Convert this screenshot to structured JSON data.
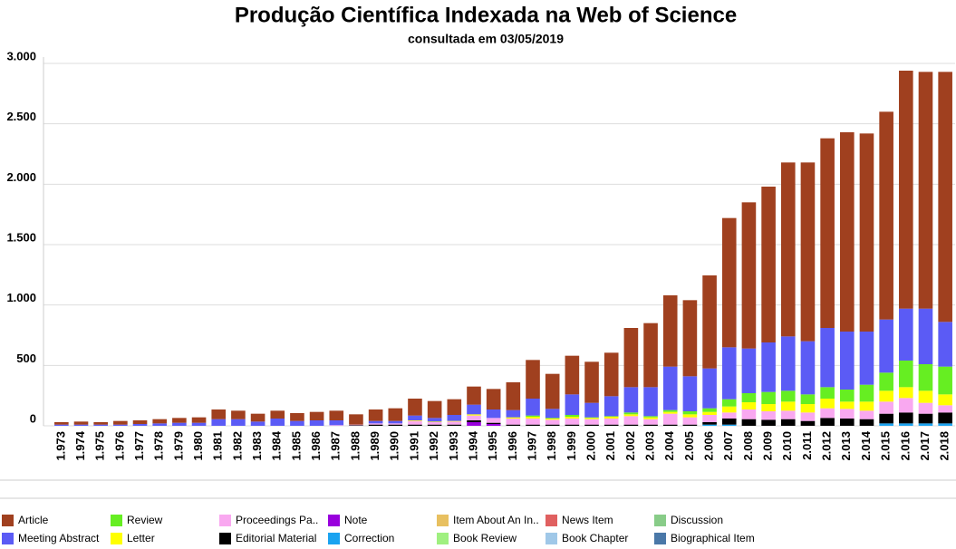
{
  "chart_data": {
    "type": "stacked_bar",
    "title": "Produção Científica Indexada na Web of Science",
    "subtitle": "consultada em 03/05/2019",
    "categories": [
      "1.973",
      "1.974",
      "1.975",
      "1.976",
      "1.977",
      "1.978",
      "1.979",
      "1.980",
      "1.981",
      "1.982",
      "1.983",
      "1.984",
      "1.985",
      "1.986",
      "1.987",
      "1.988",
      "1.989",
      "1.990",
      "1.991",
      "1.992",
      "1.993",
      "1.994",
      "1.995",
      "1.996",
      "1.997",
      "1.998",
      "1.999",
      "2.000",
      "2.001",
      "2.002",
      "2.003",
      "2.004",
      "2.005",
      "2.006",
      "2.007",
      "2.008",
      "2.009",
      "2.010",
      "2.011",
      "2.012",
      "2.013",
      "2.014",
      "2.015",
      "2.016",
      "2.017",
      "2.018"
    ],
    "ylim": [
      0,
      3000
    ],
    "yticks": [
      0,
      500,
      {
        "value": 1000,
        "label": "1.000"
      },
      {
        "value": 1500,
        "label": "1.500"
      },
      {
        "value": 2000,
        "label": "2.000"
      },
      {
        "value": 2500,
        "label": "2.500"
      },
      {
        "value": 3000,
        "label": "3.000"
      }
    ],
    "grid": true,
    "series": [
      {
        "name": "Article",
        "color": "#a0401f",
        "values": [
          20,
          25,
          20,
          30,
          30,
          35,
          40,
          45,
          80,
          70,
          65,
          65,
          65,
          70,
          80,
          85,
          95,
          105,
          140,
          140,
          130,
          150,
          170,
          230,
          320,
          290,
          320,
          340,
          360,
          490,
          530,
          590,
          630,
          770,
          1070,
          1210,
          1290,
          1440,
          1480,
          1570,
          1650,
          1640,
          1720,
          1970,
          1960,
          2070
        ]
      },
      {
        "name": "Meeting Abstract",
        "color": "#5b5bf5",
        "values": [
          10,
          10,
          10,
          10,
          15,
          20,
          25,
          25,
          55,
          55,
          35,
          60,
          40,
          45,
          40,
          0,
          20,
          20,
          40,
          30,
          50,
          80,
          70,
          60,
          140,
          75,
          170,
          120,
          165,
          210,
          240,
          360,
          290,
          330,
          430,
          370,
          410,
          450,
          440,
          490,
          480,
          440,
          440,
          430,
          460,
          370
        ]
      },
      {
        "name": "Review",
        "color": "#66ee22",
        "values": [
          0,
          0,
          0,
          0,
          0,
          0,
          0,
          0,
          0,
          0,
          0,
          0,
          0,
          0,
          0,
          0,
          0,
          0,
          0,
          0,
          0,
          0,
          0,
          0,
          10,
          5,
          15,
          5,
          5,
          15,
          10,
          15,
          25,
          30,
          60,
          75,
          100,
          90,
          80,
          95,
          100,
          140,
          150,
          220,
          220,
          230
        ]
      },
      {
        "name": "Letter",
        "color": "#ffff00",
        "values": [
          0,
          0,
          0,
          0,
          0,
          0,
          0,
          0,
          0,
          0,
          0,
          0,
          0,
          0,
          0,
          0,
          0,
          0,
          5,
          5,
          5,
          10,
          0,
          10,
          15,
          10,
          15,
          10,
          15,
          15,
          15,
          15,
          25,
          25,
          50,
          60,
          60,
          75,
          70,
          80,
          60,
          75,
          90,
          90,
          100,
          90
        ]
      },
      {
        "name": "Proceedings Pa..",
        "color": "#f9a8f0",
        "values": [
          0,
          0,
          0,
          0,
          0,
          0,
          0,
          0,
          0,
          0,
          0,
          0,
          0,
          0,
          5,
          5,
          10,
          10,
          30,
          20,
          25,
          40,
          40,
          50,
          50,
          40,
          50,
          45,
          50,
          70,
          45,
          90,
          60,
          60,
          50,
          80,
          70,
          70,
          70,
          80,
          80,
          70,
          100,
          120,
          90,
          60
        ]
      },
      {
        "name": "Editorial Material",
        "color": "#000000",
        "values": [
          0,
          0,
          0,
          0,
          0,
          0,
          0,
          0,
          0,
          0,
          0,
          0,
          0,
          0,
          0,
          5,
          10,
          10,
          10,
          10,
          10,
          15,
          10,
          10,
          10,
          10,
          10,
          10,
          10,
          10,
          10,
          10,
          10,
          20,
          50,
          55,
          50,
          55,
          40,
          65,
          60,
          55,
          80,
          90,
          80,
          90
        ]
      },
      {
        "name": "Note",
        "color": "#9900dd",
        "values": [
          0,
          0,
          0,
          0,
          0,
          0,
          0,
          0,
          0,
          0,
          0,
          0,
          0,
          0,
          0,
          0,
          0,
          0,
          0,
          0,
          0,
          30,
          15,
          0,
          0,
          0,
          0,
          0,
          0,
          0,
          0,
          0,
          0,
          0,
          0,
          0,
          0,
          0,
          0,
          0,
          0,
          0,
          0,
          0,
          0,
          0
        ]
      },
      {
        "name": "Correction",
        "color": "#1aa3f0",
        "values": [
          0,
          0,
          0,
          0,
          0,
          0,
          0,
          0,
          0,
          0,
          0,
          0,
          0,
          0,
          0,
          0,
          0,
          0,
          0,
          0,
          0,
          0,
          0,
          0,
          0,
          0,
          0,
          0,
          0,
          0,
          0,
          0,
          0,
          10,
          10,
          0,
          0,
          0,
          0,
          0,
          0,
          0,
          20,
          20,
          20,
          20
        ]
      },
      {
        "name": "Item About An In..",
        "color": "#e8c060",
        "values": [
          0,
          0,
          0,
          0,
          0,
          0,
          0,
          0,
          0,
          0,
          0,
          0,
          0,
          0,
          0,
          0,
          0,
          0,
          0,
          0,
          0,
          0,
          0,
          0,
          0,
          0,
          0,
          0,
          0,
          0,
          0,
          0,
          0,
          0,
          0,
          0,
          0,
          0,
          0,
          0,
          0,
          0,
          0,
          0,
          0,
          0
        ]
      },
      {
        "name": "Book Review",
        "color": "#a0f080",
        "values": [
          0,
          0,
          0,
          0,
          0,
          0,
          0,
          0,
          0,
          0,
          0,
          0,
          0,
          0,
          0,
          0,
          0,
          0,
          0,
          0,
          0,
          0,
          0,
          0,
          0,
          0,
          0,
          0,
          0,
          0,
          0,
          0,
          0,
          0,
          0,
          0,
          0,
          0,
          0,
          0,
          0,
          0,
          0,
          0,
          0,
          0
        ]
      },
      {
        "name": "News Item",
        "color": "#e06060",
        "values": [
          0,
          0,
          0,
          0,
          0,
          0,
          0,
          0,
          0,
          0,
          0,
          0,
          0,
          0,
          0,
          0,
          0,
          0,
          0,
          0,
          0,
          0,
          0,
          0,
          0,
          0,
          0,
          0,
          0,
          0,
          0,
          0,
          0,
          0,
          0,
          0,
          0,
          0,
          0,
          0,
          0,
          0,
          0,
          0,
          0,
          0
        ]
      },
      {
        "name": "Book Chapter",
        "color": "#a0c8e8",
        "values": [
          0,
          0,
          0,
          0,
          0,
          0,
          0,
          0,
          0,
          0,
          0,
          0,
          0,
          0,
          0,
          0,
          0,
          0,
          0,
          0,
          0,
          0,
          0,
          0,
          0,
          0,
          0,
          0,
          0,
          0,
          0,
          0,
          0,
          0,
          0,
          0,
          0,
          0,
          0,
          0,
          0,
          0,
          0,
          0,
          0,
          0
        ]
      },
      {
        "name": "Discussion",
        "color": "#88cc88",
        "values": [
          0,
          0,
          0,
          0,
          0,
          0,
          0,
          0,
          0,
          0,
          0,
          0,
          0,
          0,
          0,
          0,
          0,
          0,
          0,
          0,
          0,
          0,
          0,
          0,
          0,
          0,
          0,
          0,
          0,
          0,
          0,
          0,
          0,
          0,
          0,
          0,
          0,
          0,
          0,
          0,
          0,
          0,
          0,
          0,
          0,
          0
        ]
      },
      {
        "name": "Biographical Item",
        "color": "#4a78a8",
        "values": [
          0,
          0,
          0,
          0,
          0,
          0,
          0,
          0,
          0,
          0,
          0,
          0,
          0,
          0,
          0,
          0,
          0,
          0,
          0,
          0,
          0,
          0,
          0,
          0,
          0,
          0,
          0,
          0,
          0,
          0,
          0,
          0,
          0,
          0,
          0,
          0,
          0,
          0,
          0,
          0,
          0,
          0,
          0,
          0,
          0,
          0
        ]
      }
    ]
  }
}
